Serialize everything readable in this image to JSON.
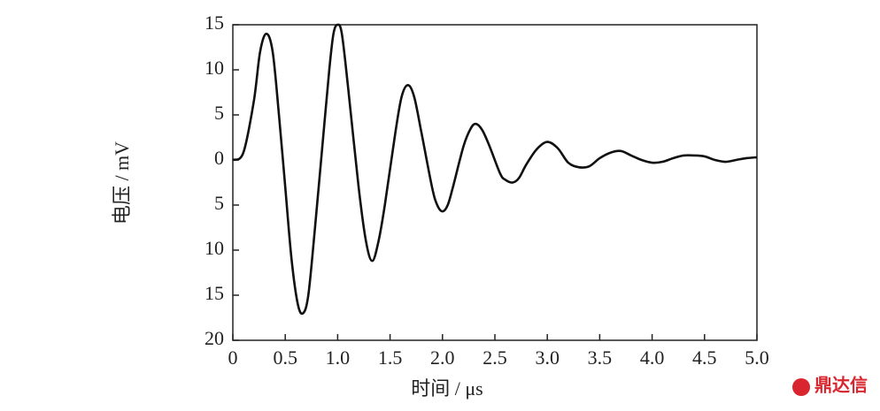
{
  "chart_data": {
    "type": "line",
    "x_label": "时间 / μs",
    "y_label": "电压 / mV",
    "watermark": "鼎达信",
    "x": [
      0,
      0.1,
      0.2,
      0.26,
      0.32,
      0.38,
      0.44,
      0.5,
      0.56,
      0.62,
      0.67,
      0.72,
      0.78,
      0.85,
      0.92,
      0.96,
      1.0,
      1.04,
      1.1,
      1.2,
      1.27,
      1.33,
      1.39,
      1.45,
      1.55,
      1.61,
      1.67,
      1.73,
      1.8,
      1.9,
      1.95,
      2.0,
      2.05,
      2.1,
      2.2,
      2.27,
      2.32,
      2.38,
      2.45,
      2.55,
      2.6,
      2.67,
      2.73,
      2.8,
      2.9,
      3.0,
      3.1,
      3.2,
      3.3,
      3.4,
      3.5,
      3.6,
      3.7,
      3.8,
      3.9,
      4.0,
      4.1,
      4.2,
      4.3,
      4.4,
      4.5,
      4.6,
      4.7,
      4.8,
      4.9,
      5.0
    ],
    "series": [
      {
        "name": "电压",
        "color": "#111111",
        "values": [
          0,
          0.8,
          6.5,
          12,
          14,
          12,
          5,
          -3,
          -11,
          -16,
          -17,
          -15,
          -8,
          1,
          10,
          14,
          15,
          14,
          8,
          -3,
          -9,
          -11.2,
          -9,
          -5,
          3,
          7,
          8.3,
          7,
          3,
          -3,
          -5,
          -5.7,
          -5,
          -3,
          1.5,
          3.5,
          4,
          3.3,
          1.5,
          -1.5,
          -2.2,
          -2.5,
          -2,
          -0.5,
          1.2,
          2,
          1.3,
          -0.3,
          -0.8,
          -0.7,
          0.2,
          0.8,
          1,
          0.5,
          0,
          -0.3,
          -0.2,
          0.2,
          0.5,
          0.5,
          0.4,
          0,
          -0.2,
          0,
          0.2,
          0.3
        ]
      }
    ],
    "xlim": [
      0,
      5
    ],
    "ylim": [
      -20,
      15
    ],
    "xticks": [
      0,
      0.5,
      {
        "value": 1,
        "label": "1.0"
      },
      1.5,
      {
        "value": 2,
        "label": "2.0"
      },
      2.5,
      {
        "value": 3,
        "label": "3.0"
      },
      3.5,
      {
        "value": 4,
        "label": "4.0"
      },
      4.5,
      {
        "value": 5,
        "label": "5.0"
      }
    ],
    "yticks": [
      15,
      10,
      5,
      0,
      {
        "value": -5,
        "label": "5"
      },
      {
        "value": -10,
        "label": "10"
      },
      {
        "value": -15,
        "label": "15"
      },
      {
        "value": -20,
        "label": "20"
      }
    ]
  }
}
